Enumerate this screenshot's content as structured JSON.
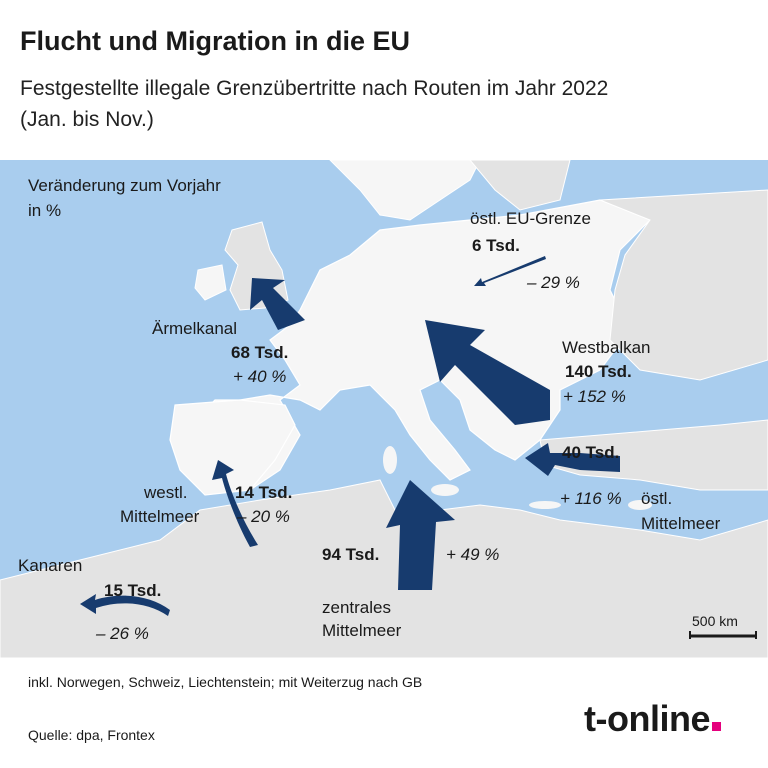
{
  "header": {
    "title": "Flucht und Migration in die EU",
    "subtitle": "Festgestellte illegale Grenzübertritte nach Routen im Jahr 2022 (Jan. bis Nov.)"
  },
  "legend": {
    "line1": "Veränderung zum Vorjahr",
    "line2": "in %"
  },
  "routes": {
    "east_border": {
      "name": "östl. EU-Grenze",
      "value": "6 Tsd.",
      "change": "– 29 %",
      "count_thousands": 6,
      "change_pct": -29
    },
    "channel": {
      "name": "Ärmelkanal",
      "value": "68 Tsd.",
      "change": "+ 40 %",
      "count_thousands": 68,
      "change_pct": 40
    },
    "balkan": {
      "name": "Westbalkan",
      "value": "140 Tsd.",
      "change": "+ 152 %",
      "count_thousands": 140,
      "change_pct": 152
    },
    "east_med": {
      "name1": "östl.",
      "name2": "Mittelmeer",
      "value": "40 Tsd.",
      "change": "+ 116 %",
      "count_thousands": 40,
      "change_pct": 116
    },
    "west_med": {
      "name1": "westl.",
      "name2": "Mittelmeer",
      "value": "14 Tsd.",
      "change": "– 20 %",
      "count_thousands": 14,
      "change_pct": -20
    },
    "central_med": {
      "name1": "zentrales",
      "name2": "Mittelmeer",
      "value": "94 Tsd.",
      "change": "+ 49 %",
      "count_thousands": 94,
      "change_pct": 49
    },
    "canaries": {
      "name": "Kanaren",
      "value": "15 Tsd.",
      "change": "– 26 %",
      "count_thousands": 15,
      "change_pct": -26
    }
  },
  "scale": {
    "label": "500 km"
  },
  "footer": {
    "note": "inkl. Norwegen, Schweiz, Liechtenstein; mit Weiterzug nach GB",
    "source": "Quelle: dpa, Frontex",
    "logo": "t-online"
  },
  "colors": {
    "sea": "#a9cdee",
    "land": "#e3e3e3",
    "eu_land": "#f6f6f6",
    "arrow": "#173b6e",
    "logo_dot": "#e5007d"
  }
}
